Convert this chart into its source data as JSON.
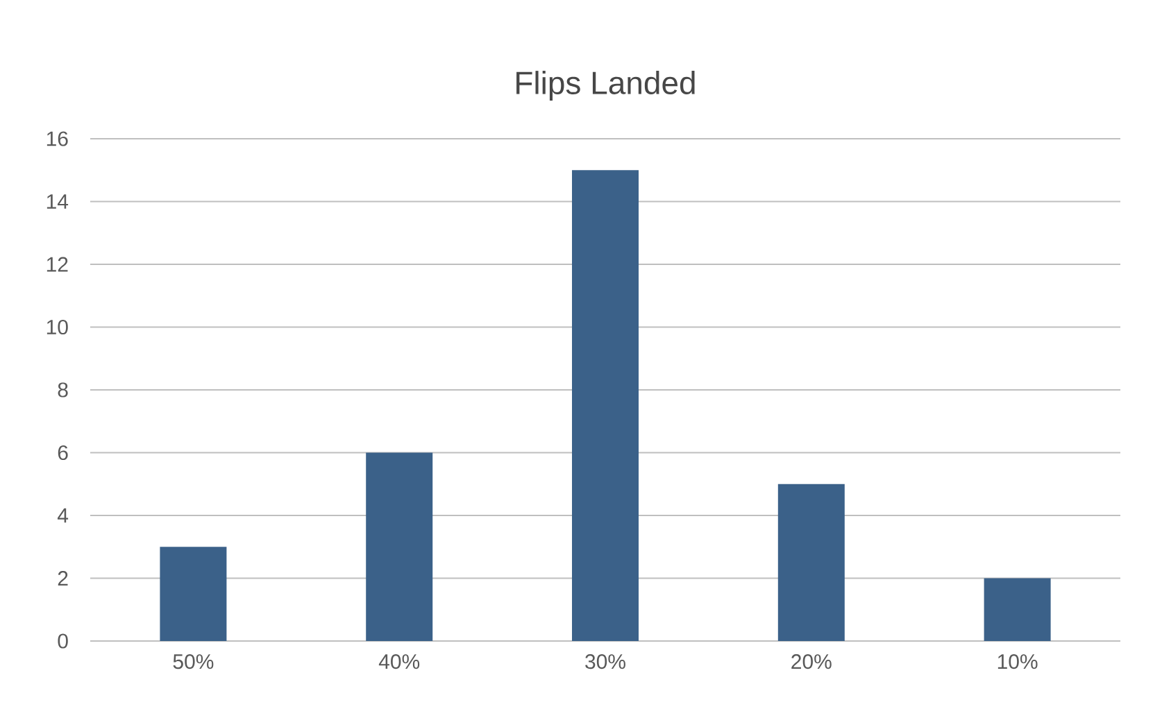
{
  "chart_data": {
    "type": "bar",
    "title": "Flips Landed",
    "categories": [
      "50%",
      "40%",
      "30%",
      "20%",
      "10%"
    ],
    "values": [
      3,
      6,
      15,
      5,
      2
    ],
    "color": "#3b6189",
    "ylim": [
      0,
      16
    ],
    "yticks": [
      0,
      2,
      4,
      6,
      8,
      10,
      12,
      14,
      16
    ],
    "grid": "y"
  }
}
